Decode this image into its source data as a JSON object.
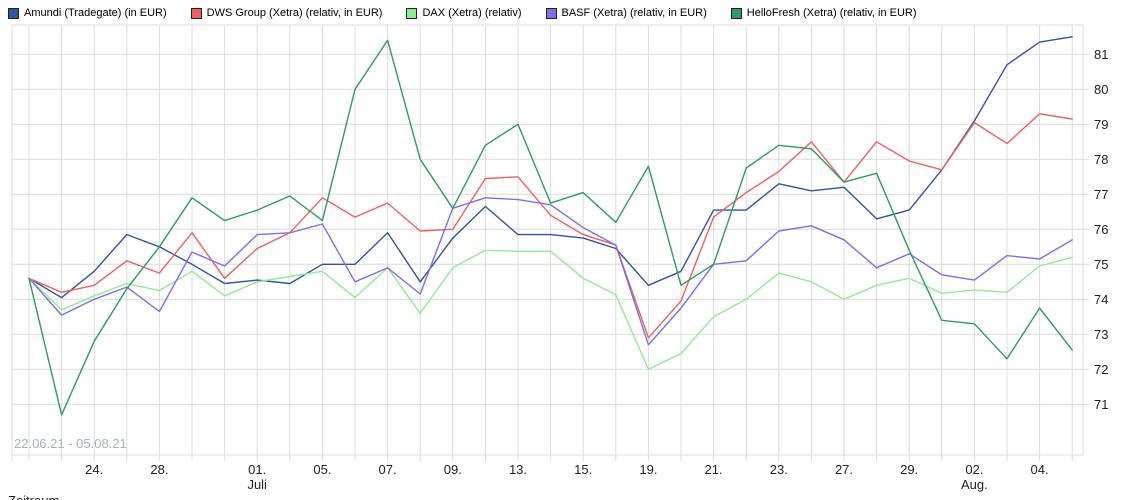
{
  "legend": {
    "items": [
      {
        "label": "Amundi (Tradegate) (in EUR)",
        "color": "#2f55a4"
      },
      {
        "label": "DWS Group (Xetra) (relativ, in EUR)",
        "color": "#f06060"
      },
      {
        "label": "DAX (Xetra) (relativ)",
        "color": "#90ee90"
      },
      {
        "label": "BASF (Xetra) (relativ, in EUR)",
        "color": "#7b6ff0"
      },
      {
        "label": "HelloFresh (Xetra) (relativ, in EUR)",
        "color": "#2a9d64"
      }
    ]
  },
  "footer": {
    "partial_text": "Zeitraum"
  },
  "chart_data": {
    "type": "line",
    "title": "",
    "xlabel": "",
    "ylabel": "",
    "range_label": "22.06.21 - 05.08.21",
    "ylim": [
      70.4,
      81.8
    ],
    "y_ticks": [
      71,
      72,
      73,
      74,
      75,
      76,
      77,
      78,
      79,
      80,
      81
    ],
    "grid": true,
    "legend_position": "top",
    "x_tick_labels": [
      {
        "index": 2,
        "label": "24."
      },
      {
        "index": 4,
        "label": "28."
      },
      {
        "index": 7,
        "label": "01.",
        "sub": "Juli"
      },
      {
        "index": 9,
        "label": "05."
      },
      {
        "index": 11,
        "label": "07."
      },
      {
        "index": 13,
        "label": "09."
      },
      {
        "index": 15,
        "label": "13."
      },
      {
        "index": 17,
        "label": "15."
      },
      {
        "index": 19,
        "label": "19."
      },
      {
        "index": 21,
        "label": "21."
      },
      {
        "index": 23,
        "label": "23."
      },
      {
        "index": 25,
        "label": "27."
      },
      {
        "index": 27,
        "label": "29."
      },
      {
        "index": 29,
        "label": "02.",
        "sub": "Aug."
      },
      {
        "index": 31,
        "label": "04."
      }
    ],
    "series": [
      {
        "name": "Amundi (Tradegate) (in EUR)",
        "color": "#2f55a4",
        "values": [
          74.6,
          74.05,
          74.8,
          75.85,
          75.5,
          75.0,
          74.45,
          74.55,
          74.45,
          75.0,
          75.0,
          75.9,
          74.5,
          75.75,
          76.65,
          75.85,
          75.85,
          75.75,
          75.45,
          74.4,
          74.8,
          76.55,
          76.55,
          77.3,
          77.1,
          77.2,
          76.3,
          76.55,
          77.7,
          79.1,
          80.7,
          81.35,
          81.5
        ]
      },
      {
        "name": "DWS Group (Xetra) (relativ, in EUR)",
        "color": "#f06060",
        "values": [
          74.6,
          74.2,
          74.4,
          75.1,
          74.75,
          75.9,
          74.6,
          75.45,
          75.9,
          76.9,
          76.35,
          76.75,
          75.95,
          76.0,
          77.45,
          77.5,
          76.4,
          75.85,
          75.55,
          72.9,
          73.95,
          76.35,
          77.05,
          77.65,
          78.5,
          77.35,
          78.5,
          77.95,
          77.7,
          79.05,
          78.45,
          79.3,
          79.15
        ]
      },
      {
        "name": "DAX (Xetra) (relativ)",
        "color": "#90ee90",
        "values": [
          74.6,
          73.7,
          74.1,
          74.45,
          74.25,
          74.8,
          74.1,
          74.5,
          74.65,
          74.8,
          74.05,
          74.9,
          73.6,
          74.9,
          75.4,
          75.37,
          75.37,
          74.6,
          74.13,
          72.0,
          72.45,
          73.5,
          74.0,
          74.75,
          74.5,
          74.0,
          74.4,
          74.6,
          74.17,
          74.27,
          74.2,
          74.95,
          75.2
        ]
      },
      {
        "name": "BASF (Xetra) (relativ, in EUR)",
        "color": "#7b6ff0",
        "values": [
          74.6,
          73.55,
          74.0,
          74.35,
          73.65,
          75.35,
          74.95,
          75.85,
          75.9,
          76.15,
          74.5,
          74.9,
          74.15,
          76.6,
          76.9,
          76.85,
          76.7,
          76.05,
          75.55,
          72.7,
          73.75,
          75.0,
          75.1,
          75.95,
          76.1,
          75.7,
          74.9,
          75.3,
          74.7,
          74.55,
          75.25,
          75.15,
          75.7
        ]
      },
      {
        "name": "HelloFresh (Xetra) (relativ, in EUR)",
        "color": "#2a9d64",
        "values": [
          74.6,
          70.7,
          72.8,
          74.3,
          75.5,
          76.9,
          76.25,
          76.55,
          76.95,
          76.25,
          80.0,
          81.4,
          78.0,
          76.6,
          78.4,
          79.0,
          76.75,
          77.05,
          76.2,
          77.8,
          74.4,
          75.0,
          77.75,
          78.4,
          78.3,
          77.35,
          77.6,
          75.4,
          73.4,
          73.3,
          72.3,
          73.75,
          72.55
        ]
      }
    ]
  }
}
